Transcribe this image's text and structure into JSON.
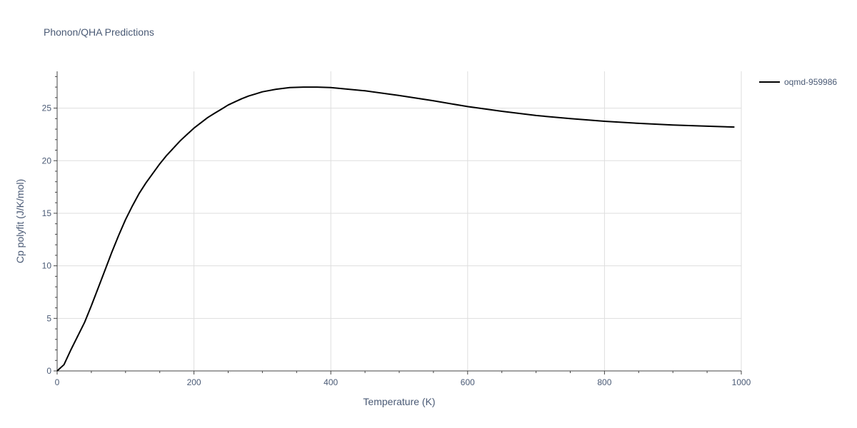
{
  "chart_data": {
    "type": "line",
    "title": "Phonon/QHA Predictions",
    "xlabel": "Temperature (K)",
    "ylabel": "Cp polyfit (J/K/mol)",
    "xlim": [
      0,
      1000
    ],
    "ylim": [
      0,
      28.5
    ],
    "xticks": [
      0,
      200,
      400,
      600,
      800,
      1000
    ],
    "yticks": [
      0,
      5,
      10,
      15,
      20,
      25
    ],
    "grid": true,
    "legend_position": "top-right",
    "series": [
      {
        "name": "oqmd-959986",
        "color": "#000000",
        "x": [
          0,
          10,
          20,
          30,
          40,
          50,
          60,
          70,
          80,
          90,
          100,
          110,
          120,
          130,
          140,
          150,
          160,
          170,
          180,
          190,
          200,
          210,
          220,
          230,
          240,
          250,
          260,
          270,
          280,
          290,
          300,
          320,
          340,
          360,
          380,
          400,
          450,
          500,
          550,
          600,
          650,
          700,
          750,
          800,
          850,
          900,
          950,
          990
        ],
        "y": [
          0,
          0.6,
          2.0,
          3.3,
          4.6,
          6.2,
          7.9,
          9.6,
          11.3,
          12.9,
          14.4,
          15.7,
          16.9,
          17.9,
          18.8,
          19.7,
          20.5,
          21.2,
          21.9,
          22.5,
          23.1,
          23.6,
          24.1,
          24.5,
          24.9,
          25.3,
          25.6,
          25.9,
          26.15,
          26.35,
          26.55,
          26.8,
          26.95,
          27.0,
          27.0,
          26.95,
          26.65,
          26.2,
          25.7,
          25.15,
          24.7,
          24.3,
          24.0,
          23.75,
          23.55,
          23.4,
          23.28,
          23.2
        ]
      }
    ]
  }
}
